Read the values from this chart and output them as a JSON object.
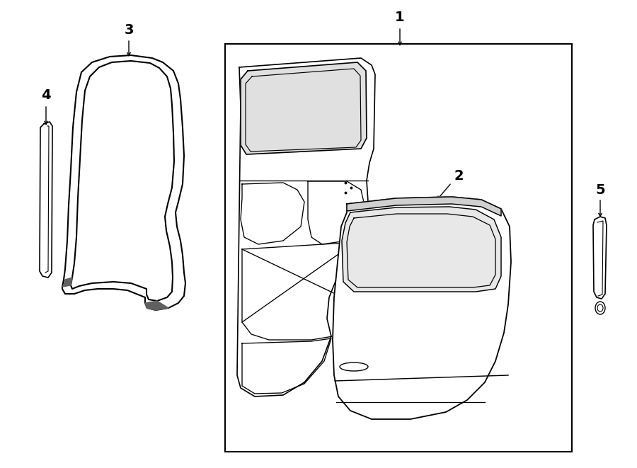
{
  "background_color": "#ffffff",
  "line_color": "#000000",
  "fig_width": 9.0,
  "fig_height": 6.61,
  "label_1": "1",
  "label_2": "2",
  "label_3": "3",
  "label_4": "4",
  "label_5": "5"
}
